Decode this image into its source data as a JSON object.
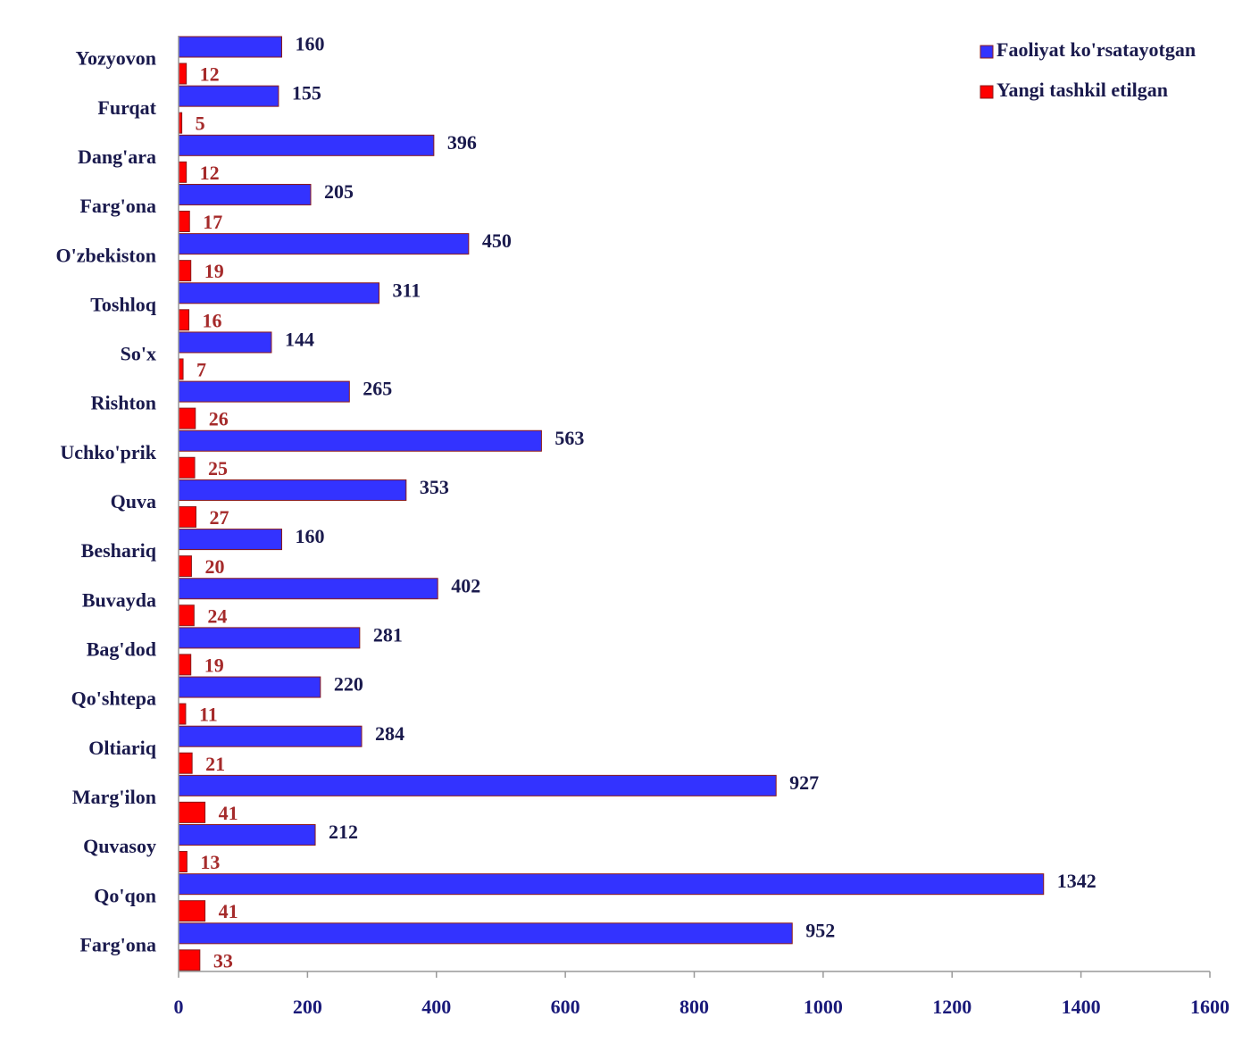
{
  "chart_data": {
    "type": "barh",
    "categories": [
      "Yozyovon",
      "Furqat",
      "Dang'ara",
      "Farg'ona",
      "O'zbekiston",
      "Toshloq",
      "So'x",
      "Rishton",
      "Uchko'prik",
      "Quva",
      "Beshariq",
      "Buvayda",
      "Bag'dod",
      "Qo'shtepa",
      "Oltiariq",
      "Marg'ilon",
      "Quvasoy",
      "Qo'qon",
      "Farg'ona"
    ],
    "series": [
      {
        "name": "Faoliyat ko'rsatayotgan",
        "color": "#3333ff",
        "values": [
          160,
          155,
          396,
          205,
          450,
          311,
          144,
          265,
          563,
          353,
          160,
          402,
          281,
          220,
          284,
          927,
          212,
          1342,
          952
        ]
      },
      {
        "name": "Yangi tashkil etilgan",
        "color": "#ff0000",
        "values": [
          12,
          5,
          12,
          17,
          19,
          16,
          7,
          26,
          25,
          27,
          20,
          24,
          19,
          11,
          21,
          41,
          13,
          41,
          33
        ]
      }
    ],
    "xlim": [
      0,
      1600
    ],
    "xticks": [
      0,
      200,
      400,
      600,
      800,
      1000,
      1200,
      1400,
      1600
    ],
    "legend": "top-right"
  }
}
